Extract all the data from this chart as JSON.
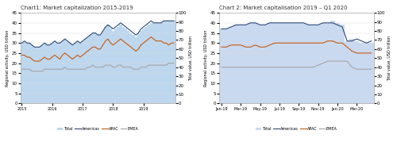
{
  "chart1": {
    "title": "Chart1: Market capitalization 2015-2019",
    "ylabel_left": "Regional activity, USD trillion",
    "ylabel_right": "Total value, USD trillion",
    "xlabels": [
      "2015",
      "2016",
      "2017",
      "2018",
      "2019"
    ],
    "ylim_left": [
      0,
      45
    ],
    "ylim_right": [
      0,
      100
    ],
    "yticks_left": [
      0,
      5,
      10,
      15,
      20,
      25,
      30,
      35,
      40,
      45
    ],
    "yticks_right": [
      0,
      10,
      20,
      30,
      40,
      50,
      60,
      70,
      80,
      90,
      100
    ],
    "total_bar_color": "#bdd7ee",
    "americas_color": "#2e4a7a",
    "apac_color": "#c55a11",
    "emea_color": "#a5a5a5",
    "total_bars": [
      30,
      31,
      30,
      30,
      29,
      28,
      28,
      28,
      29,
      30,
      29,
      29,
      30,
      31,
      30,
      30,
      31,
      32,
      31,
      30,
      29,
      30,
      31,
      30,
      31,
      32,
      33,
      34,
      35,
      35,
      34,
      34,
      36,
      38,
      39,
      37,
      36,
      37,
      38,
      39,
      38,
      37,
      36,
      35,
      34,
      33,
      35,
      36,
      37,
      38,
      39,
      40,
      40,
      40,
      40,
      40,
      41,
      41,
      41,
      41,
      41
    ],
    "americas": [
      30,
      31,
      30,
      30,
      29,
      28,
      28,
      28,
      29,
      30,
      29,
      29,
      30,
      31,
      30,
      30,
      31,
      32,
      31,
      30,
      29,
      30,
      31,
      30,
      31,
      32,
      33,
      34,
      35,
      35,
      34,
      34,
      36,
      38,
      39,
      38,
      37,
      38,
      39,
      40,
      39,
      38,
      37,
      36,
      35,
      34,
      35,
      37,
      38,
      39,
      40,
      41,
      40,
      40,
      40,
      40,
      41,
      41,
      41,
      41,
      41
    ],
    "apac": [
      24,
      24,
      23,
      23,
      22,
      21,
      21,
      21,
      22,
      23,
      22,
      22,
      23,
      24,
      23,
      22,
      24,
      25,
      24,
      23,
      22,
      23,
      24,
      23,
      24,
      25,
      26,
      27,
      28,
      28,
      27,
      27,
      29,
      31,
      32,
      30,
      29,
      30,
      31,
      32,
      31,
      30,
      29,
      28,
      27,
      26,
      27,
      29,
      30,
      31,
      32,
      33,
      32,
      31,
      31,
      31,
      30,
      30,
      29,
      30,
      30
    ],
    "emea": [
      17,
      17,
      17,
      17,
      16,
      16,
      16,
      16,
      16,
      17,
      17,
      17,
      17,
      17,
      17,
      17,
      17,
      18,
      17,
      17,
      17,
      17,
      17,
      17,
      17,
      17,
      18,
      18,
      19,
      18,
      18,
      18,
      18,
      19,
      19,
      19,
      18,
      18,
      19,
      19,
      18,
      18,
      18,
      18,
      17,
      17,
      17,
      18,
      18,
      18,
      19,
      19,
      19,
      19,
      19,
      19,
      19,
      19,
      20,
      20,
      20
    ],
    "n_points": 61,
    "xtick_positions": [
      0,
      12,
      24,
      36,
      48
    ]
  },
  "chart2": {
    "title": "Chart 2: Market capitalisation 2019 – Q1 2020",
    "ylabel_left": "Regional activity, USD trillion",
    "ylabel_right": "Total value, USD trillion",
    "xlabels": [
      "Jan-19",
      "Mar-19",
      "May-19",
      "Jul-19",
      "Sep-19",
      "Nov-19",
      "Jan-20",
      "Mar-20"
    ],
    "ylim_left": [
      0,
      45
    ],
    "ylim_right": [
      0,
      100
    ],
    "yticks_left": [
      0,
      5,
      10,
      15,
      20,
      25,
      30,
      35,
      40,
      45
    ],
    "yticks_right": [
      0,
      10,
      20,
      30,
      40,
      50,
      60,
      70,
      80,
      90,
      100
    ],
    "total_bar_color": "#c9d9f0",
    "americas_color": "#2e4a7a",
    "apac_color": "#c55a11",
    "emea_color": "#a5a5a5",
    "total_bars": [
      37,
      37,
      38,
      39,
      39,
      39,
      40,
      40,
      39,
      39,
      40,
      40,
      40,
      40,
      40,
      40,
      40,
      40,
      39,
      39,
      39,
      40,
      40,
      41,
      40,
      39,
      31,
      32,
      31,
      30,
      30,
      30
    ],
    "americas": [
      37,
      37,
      38,
      39,
      39,
      39,
      40,
      40,
      39,
      39,
      40,
      40,
      40,
      40,
      40,
      40,
      40,
      40,
      39,
      39,
      39,
      40,
      40,
      40,
      39,
      38,
      31,
      31,
      32,
      31,
      30,
      31
    ],
    "apac": [
      28,
      28,
      29,
      29,
      29,
      28,
      28,
      29,
      28,
      28,
      29,
      30,
      30,
      30,
      30,
      30,
      30,
      30,
      30,
      30,
      30,
      30,
      31,
      31,
      30,
      30,
      28,
      26,
      25,
      25,
      25,
      25
    ],
    "emea": [
      18,
      18,
      18,
      18,
      18,
      18,
      18,
      18,
      18,
      18,
      18,
      18,
      18,
      18,
      18,
      18,
      18,
      18,
      18,
      18,
      19,
      20,
      21,
      21,
      21,
      21,
      21,
      18,
      17,
      17,
      17,
      17
    ],
    "n_points": 32,
    "xtick_positions": [
      0,
      4,
      8,
      12,
      16,
      20,
      24,
      28
    ]
  },
  "legend": {
    "total_label": "Total",
    "americas_label": "Americas",
    "apac_label": "APAC",
    "emea_label": "EMEA"
  }
}
